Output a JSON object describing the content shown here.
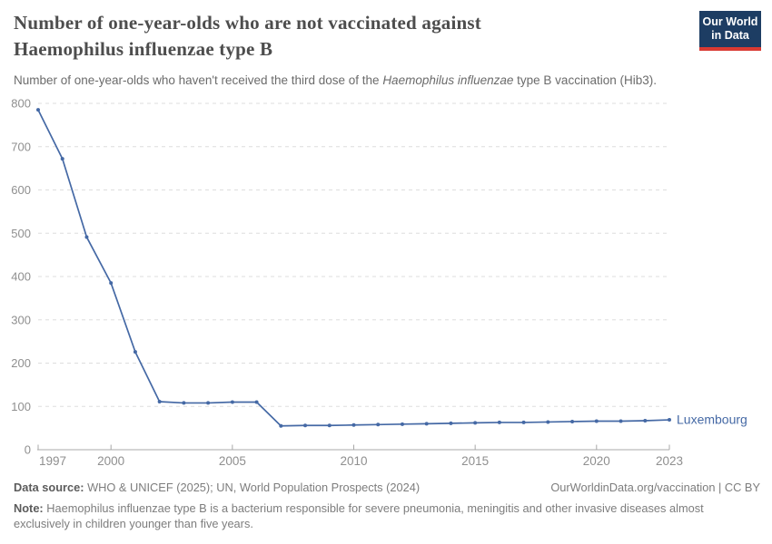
{
  "header": {
    "logo": {
      "line1": "Our World",
      "line2": "in Data"
    }
  },
  "colors": {
    "logo_navy": "#1d3d63",
    "logo_red": "#d93a32",
    "title_gray": "#4d4d4d",
    "text_gray": "#7d7d7d"
  },
  "chart_data": {
    "type": "line",
    "title": "Number of one-year-olds who are not vaccinated against Haemophilus influenzae type B",
    "subtitle_prefix": "Number of one-year-olds who haven't received the third dose of the ",
    "subtitle_italic": "Haemophilus influenzae",
    "subtitle_suffix": " type B vaccination (Hib3).",
    "x": [
      1997,
      1998,
      1999,
      2000,
      2001,
      2002,
      2003,
      2004,
      2005,
      2006,
      2007,
      2008,
      2009,
      2010,
      2011,
      2012,
      2013,
      2014,
      2015,
      2016,
      2017,
      2018,
      2019,
      2020,
      2021,
      2022,
      2023
    ],
    "series": [
      {
        "name": "Luxembourg",
        "values": [
          785,
          672,
          491,
          385,
          226,
          111,
          108,
          108,
          110,
          110,
          55,
          56,
          56,
          57,
          58,
          59,
          60,
          61,
          62,
          63,
          63,
          64,
          65,
          66,
          66,
          67,
          69
        ]
      }
    ],
    "xlabel": "",
    "ylabel": "",
    "xlim": [
      1997,
      2023
    ],
    "ylim": [
      0,
      800
    ],
    "yticks": [
      0,
      100,
      200,
      300,
      400,
      500,
      600,
      700,
      800
    ],
    "xticks": [
      1997,
      2000,
      2005,
      2010,
      2015,
      2020,
      2023
    ],
    "grid": "horizontal-dashed",
    "legend_position": "end-of-line-label",
    "line_color": "#4569a5",
    "gridline_color": "#dedede",
    "axis_color": "#a8a8a8",
    "tick_label_color": "#8f8f8f"
  },
  "footer": {
    "datasource_label": "Data source:",
    "datasource_text": " WHO & UNICEF (2025); UN, World Population Prospects (2024)",
    "link_text": "OurWorldinData.org/vaccination | CC BY",
    "note_label": "Note:",
    "note_text": " Haemophilus influenzae type B is a bacterium responsible for severe pneumonia, meningitis and other invasive diseases almost exclusively in children younger than five years."
  }
}
